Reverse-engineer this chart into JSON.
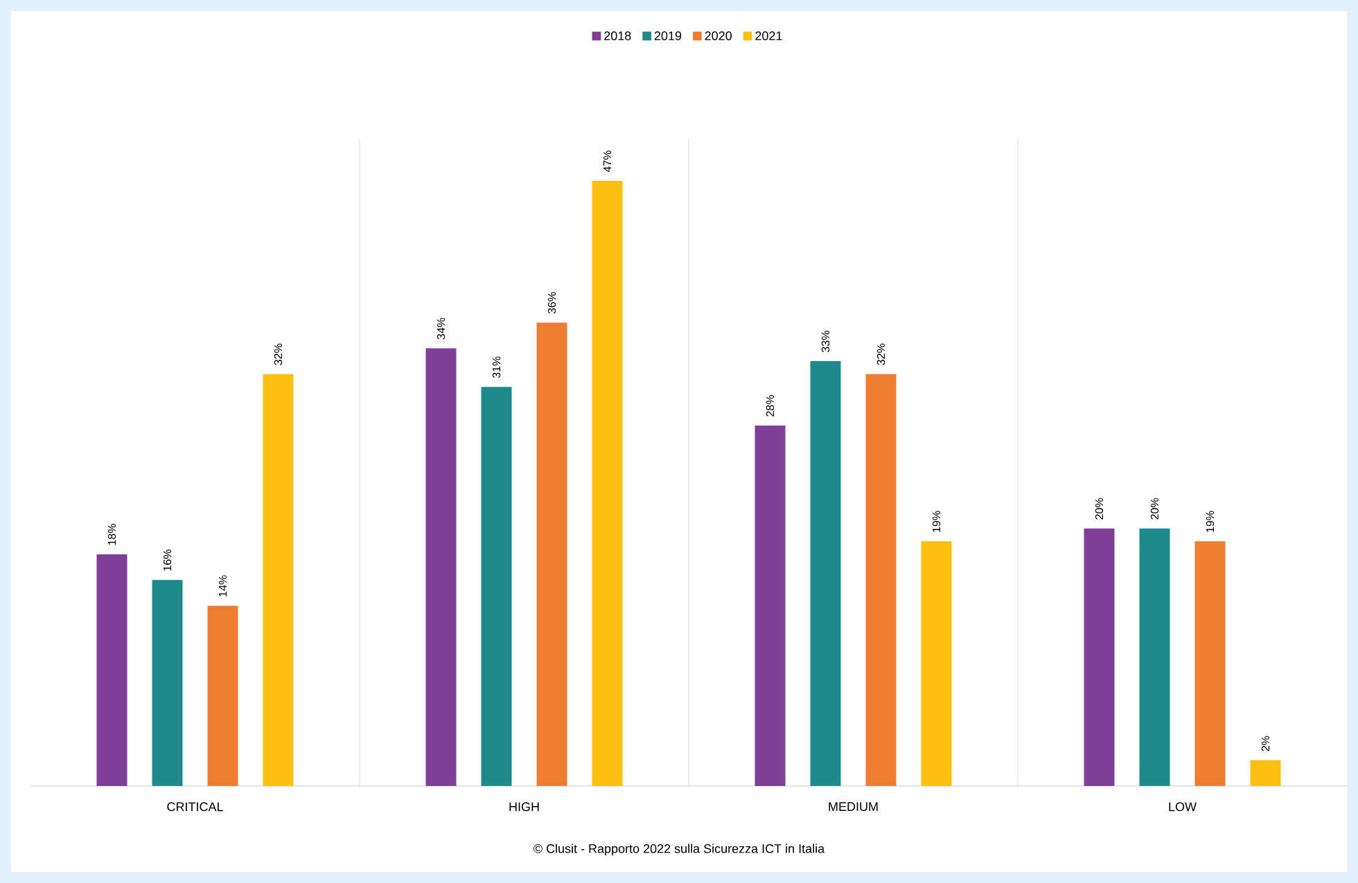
{
  "chart_data": {
    "type": "bar",
    "categories": [
      "CRITICAL",
      "HIGH",
      "MEDIUM",
      "LOW"
    ],
    "series": [
      {
        "name": "2018",
        "color": "#7e3f98",
        "values": [
          18,
          34,
          28,
          20
        ],
        "value_labels": [
          "18%",
          "34%",
          "28%",
          "20%"
        ]
      },
      {
        "name": "2019",
        "color": "#1e8a8c",
        "values": [
          16,
          31,
          33,
          20
        ],
        "value_labels": [
          "16%",
          "31%",
          "33%",
          "20%"
        ]
      },
      {
        "name": "2020",
        "color": "#ee7d31",
        "values": [
          14,
          36,
          32,
          19
        ],
        "value_labels": [
          "14%",
          "36%",
          "32%",
          "19%"
        ]
      },
      {
        "name": "2021",
        "color": "#fdc010",
        "values": [
          32,
          47,
          19,
          2
        ],
        "value_labels": [
          "32%",
          "47%",
          "19%",
          "2%"
        ]
      }
    ],
    "grid": "x",
    "legend": "top",
    "annotations": [
      "© Clusit - Rapporto 2022 sulla Sicurezza ICT in Italia"
    ]
  }
}
